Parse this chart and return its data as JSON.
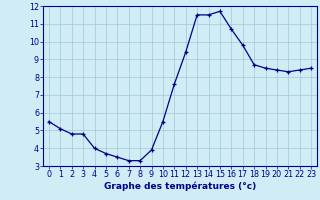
{
  "x": [
    0,
    1,
    2,
    3,
    4,
    5,
    6,
    7,
    8,
    9,
    10,
    11,
    12,
    13,
    14,
    15,
    16,
    17,
    18,
    19,
    20,
    21,
    22,
    23
  ],
  "y": [
    5.5,
    5.1,
    4.8,
    4.8,
    4.0,
    3.7,
    3.5,
    3.3,
    3.3,
    3.9,
    5.5,
    7.6,
    9.4,
    11.5,
    11.5,
    11.7,
    10.7,
    9.8,
    8.7,
    8.5,
    8.4,
    8.3,
    8.4,
    8.5
  ],
  "xlabel": "Graphe des températures (°c)",
  "ylim": [
    3,
    12
  ],
  "xlim": [
    -0.5,
    23.5
  ],
  "yticks": [
    3,
    4,
    5,
    6,
    7,
    8,
    9,
    10,
    11,
    12
  ],
  "xticks": [
    0,
    1,
    2,
    3,
    4,
    5,
    6,
    7,
    8,
    9,
    10,
    11,
    12,
    13,
    14,
    15,
    16,
    17,
    18,
    19,
    20,
    21,
    22,
    23
  ],
  "line_color": "#00008b",
  "marker_color": "#00008b",
  "bg_color": "#d0edf5",
  "grid_color": "#a0c8d8",
  "axis_color": "#00008b",
  "xlabel_color": "#00008b",
  "tick_color": "#00008b",
  "font_size_xlabel": 6.5,
  "font_size_ticks": 5.8
}
